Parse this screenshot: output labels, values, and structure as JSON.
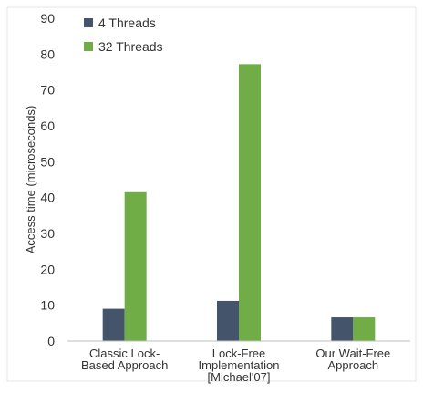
{
  "chart_data": {
    "type": "bar",
    "categories": [
      [
        "Classic Lock-",
        "Based Approach"
      ],
      [
        "Lock-Free",
        "Implementation",
        "[Michael'07]"
      ],
      [
        "Our Wait-Free",
        "Approach"
      ]
    ],
    "series": [
      {
        "name": "4 Threads",
        "color": "#44546a",
        "values": [
          9,
          11.2,
          6.6
        ]
      },
      {
        "name": "32 Threads",
        "color": "#70ad47",
        "values": [
          41.5,
          77.2,
          6.6
        ]
      }
    ],
    "title": "",
    "xlabel": "",
    "ylabel": "Access time (microseconds)",
    "ylim": [
      0,
      90
    ],
    "yticks": [
      0,
      10,
      20,
      30,
      40,
      50,
      60,
      70,
      80,
      90
    ],
    "grid": false,
    "legend": "top-left"
  }
}
